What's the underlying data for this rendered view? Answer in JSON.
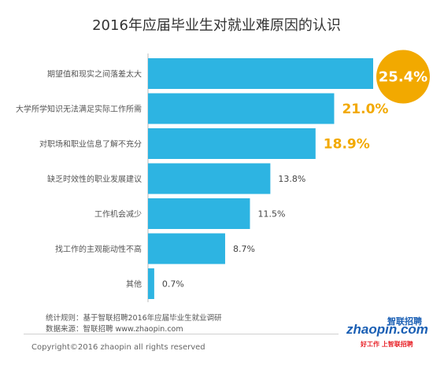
{
  "title": "2016年应届毕业生对就业难原因的认识",
  "chart_data": {
    "type": "bar",
    "orientation": "horizontal",
    "title": "2016年应届毕业生对就业难原因的认识",
    "categories": [
      "期望值和现实之间落差太大",
      "大学所学知识无法满足实际工作所需",
      "对职场和职业信息了解不充分",
      "缺乏时效性的职业发展建议",
      "工作机会减少",
      "找工作的主观能动性不高",
      "其他"
    ],
    "values": [
      25.4,
      21.0,
      18.9,
      13.8,
      11.5,
      8.7,
      0.7
    ],
    "value_labels": [
      "25.4%",
      "21.0%",
      "18.9%",
      "13.8%",
      "11.5%",
      "8.7%",
      "0.7%"
    ],
    "xlim": [
      0,
      25.4
    ],
    "bar_color": "#2db4e2",
    "highlight_color": "#f2a900",
    "grid": false,
    "legend": "none"
  },
  "footer": {
    "method": "统计规则：基于智联招聘2016年应届毕业生就业调研",
    "source": "数据来源：智联招聘 www.zhaopin.com",
    "copyright": "Copyright©2016 zhaopin all rights reserved"
  },
  "logo": {
    "brand": "zhaopin.com",
    "cn_name": "智联招聘",
    "tagline": "好工作 上智联招聘",
    "brand_color": "#1a5fb4",
    "accent_color": "#e8242a"
  }
}
